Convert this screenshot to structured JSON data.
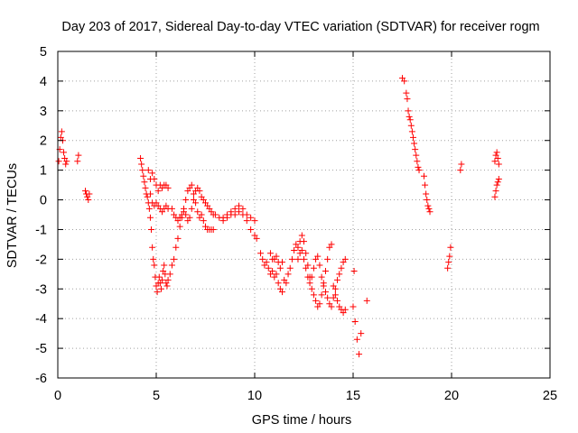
{
  "chart_data": {
    "type": "scatter",
    "title": "Day 203 of 2017, Sidereal Day-to-day VTEC variation (SDTVAR) for receiver rogm",
    "xlabel": "GPS time / hours",
    "ylabel": "SDTVAR / TECUs",
    "xlim": [
      0,
      25
    ],
    "ylim": [
      -6,
      5
    ],
    "x_ticks": [
      0,
      5,
      10,
      15,
      20,
      25
    ],
    "x_tick_labels": [
      "0",
      "5",
      "10",
      "15",
      "20",
      "25"
    ],
    "y_ticks": [
      -6,
      -5,
      -4,
      -3,
      -2,
      -1,
      0,
      1,
      2,
      3,
      4,
      5
    ],
    "y_tick_labels": [
      "-6",
      "-5",
      "-4",
      "-3",
      "-2",
      "-1",
      "0",
      "1",
      "2",
      "3",
      "4",
      "5"
    ],
    "grid": true,
    "marker": "+",
    "color": "#ff0000",
    "series": [
      {
        "name": "SDTVAR",
        "points": [
          [
            0.05,
            1.3
          ],
          [
            0.1,
            1.7
          ],
          [
            0.15,
            2.1
          ],
          [
            0.2,
            2.3
          ],
          [
            0.25,
            2.0
          ],
          [
            0.3,
            1.6
          ],
          [
            0.35,
            1.4
          ],
          [
            0.4,
            1.2
          ],
          [
            0.45,
            1.3
          ],
          [
            1.0,
            1.3
          ],
          [
            1.05,
            1.5
          ],
          [
            1.4,
            0.3
          ],
          [
            1.45,
            0.2
          ],
          [
            1.5,
            0.1
          ],
          [
            1.55,
            0.0
          ],
          [
            1.6,
            0.2
          ],
          [
            4.2,
            1.4
          ],
          [
            4.25,
            1.2
          ],
          [
            4.3,
            1.0
          ],
          [
            4.35,
            0.8
          ],
          [
            4.4,
            0.6
          ],
          [
            4.45,
            0.4
          ],
          [
            4.5,
            0.2
          ],
          [
            4.55,
            0.1
          ],
          [
            4.6,
            -0.1
          ],
          [
            4.65,
            -0.3
          ],
          [
            4.7,
            -0.6
          ],
          [
            4.75,
            -1.0
          ],
          [
            4.8,
            -1.6
          ],
          [
            4.85,
            -2.0
          ],
          [
            4.9,
            -2.2
          ],
          [
            4.95,
            -2.6
          ],
          [
            5.0,
            -2.9
          ],
          [
            5.05,
            -3.1
          ],
          [
            5.1,
            -2.8
          ],
          [
            5.15,
            -2.6
          ],
          [
            5.2,
            -2.8
          ],
          [
            5.25,
            -3.0
          ],
          [
            5.3,
            -2.7
          ],
          [
            5.35,
            -2.4
          ],
          [
            5.4,
            -2.2
          ],
          [
            5.45,
            -2.5
          ],
          [
            5.5,
            -2.8
          ],
          [
            5.55,
            -2.9
          ],
          [
            5.6,
            -2.7
          ],
          [
            5.7,
            -2.5
          ],
          [
            5.8,
            -2.2
          ],
          [
            5.9,
            -2.0
          ],
          [
            6.0,
            -1.6
          ],
          [
            6.1,
            -1.3
          ],
          [
            6.2,
            -0.9
          ],
          [
            6.3,
            -0.6
          ],
          [
            6.4,
            -0.3
          ],
          [
            6.5,
            0.0
          ],
          [
            6.6,
            0.3
          ],
          [
            6.7,
            0.4
          ],
          [
            6.8,
            0.5
          ],
          [
            6.9,
            0.2
          ],
          [
            7.0,
            -0.1
          ],
          [
            7.1,
            -0.4
          ],
          [
            7.2,
            -0.6
          ],
          [
            7.3,
            -0.5
          ],
          [
            7.4,
            -0.7
          ],
          [
            7.5,
            -0.9
          ],
          [
            7.6,
            -1.0
          ],
          [
            7.7,
            -1.0
          ],
          [
            7.8,
            -1.0
          ],
          [
            7.9,
            -1.0
          ],
          [
            4.6,
            1.0
          ],
          [
            4.7,
            0.7
          ],
          [
            4.8,
            0.9
          ],
          [
            4.9,
            0.7
          ],
          [
            5.0,
            0.5
          ],
          [
            5.1,
            0.3
          ],
          [
            5.2,
            0.5
          ],
          [
            5.3,
            0.4
          ],
          [
            5.4,
            0.5
          ],
          [
            5.5,
            0.5
          ],
          [
            5.6,
            0.4
          ],
          [
            4.7,
            0.2
          ],
          [
            4.8,
            -0.1
          ],
          [
            4.9,
            -0.2
          ],
          [
            5.0,
            -0.1
          ],
          [
            5.1,
            -0.2
          ],
          [
            5.2,
            -0.3
          ],
          [
            5.3,
            -0.4
          ],
          [
            5.4,
            -0.3
          ],
          [
            5.5,
            -0.2
          ],
          [
            5.6,
            -0.3
          ],
          [
            5.8,
            -0.3
          ],
          [
            5.9,
            -0.5
          ],
          [
            6.0,
            -0.6
          ],
          [
            6.1,
            -0.7
          ],
          [
            6.2,
            -0.6
          ],
          [
            6.3,
            -0.5
          ],
          [
            6.4,
            -0.4
          ],
          [
            6.5,
            -0.5
          ],
          [
            6.6,
            -0.7
          ],
          [
            6.7,
            -0.6
          ],
          [
            6.8,
            -0.3
          ],
          [
            6.9,
            0.0
          ],
          [
            7.0,
            0.3
          ],
          [
            7.1,
            0.4
          ],
          [
            7.2,
            0.3
          ],
          [
            7.3,
            0.1
          ],
          [
            7.4,
            0.0
          ],
          [
            7.5,
            -0.1
          ],
          [
            7.6,
            -0.2
          ],
          [
            7.7,
            -0.3
          ],
          [
            7.8,
            -0.4
          ],
          [
            7.9,
            -0.5
          ],
          [
            8.0,
            -0.5
          ],
          [
            8.2,
            -0.6
          ],
          [
            8.4,
            -0.6
          ],
          [
            8.6,
            -0.5
          ],
          [
            8.8,
            -0.4
          ],
          [
            9.0,
            -0.3
          ],
          [
            9.2,
            -0.2
          ],
          [
            9.4,
            -0.3
          ],
          [
            9.6,
            -0.5
          ],
          [
            9.8,
            -0.6
          ],
          [
            10.0,
            -0.7
          ],
          [
            8.4,
            -0.7
          ],
          [
            8.6,
            -0.6
          ],
          [
            8.8,
            -0.5
          ],
          [
            9.0,
            -0.5
          ],
          [
            9.2,
            -0.4
          ],
          [
            9.4,
            -0.5
          ],
          [
            9.6,
            -0.7
          ],
          [
            9.8,
            -1.0
          ],
          [
            10.0,
            -1.2
          ],
          [
            10.1,
            -1.3
          ],
          [
            10.3,
            -1.8
          ],
          [
            10.4,
            -2.0
          ],
          [
            10.5,
            -2.2
          ],
          [
            10.6,
            -2.1
          ],
          [
            10.7,
            -2.3
          ],
          [
            10.8,
            -2.5
          ],
          [
            10.9,
            -2.4
          ],
          [
            11.0,
            -2.6
          ],
          [
            11.1,
            -2.5
          ],
          [
            11.2,
            -2.8
          ],
          [
            11.3,
            -3.0
          ],
          [
            11.4,
            -3.1
          ],
          [
            11.5,
            -2.7
          ],
          [
            10.8,
            -1.8
          ],
          [
            10.9,
            -2.0
          ],
          [
            11.0,
            -2.0
          ],
          [
            11.1,
            -1.9
          ],
          [
            11.2,
            -2.1
          ],
          [
            11.3,
            -2.3
          ],
          [
            11.4,
            -2.1
          ],
          [
            11.6,
            -2.8
          ],
          [
            11.7,
            -2.5
          ],
          [
            11.8,
            -2.3
          ],
          [
            11.9,
            -2.0
          ],
          [
            12.0,
            -1.7
          ],
          [
            12.1,
            -1.5
          ],
          [
            12.2,
            -1.6
          ],
          [
            12.3,
            -1.4
          ],
          [
            12.4,
            -1.2
          ],
          [
            12.5,
            -1.4
          ],
          [
            12.6,
            -1.8
          ],
          [
            12.7,
            -2.2
          ],
          [
            12.8,
            -2.6
          ],
          [
            12.9,
            -3.0
          ],
          [
            13.0,
            -3.2
          ],
          [
            13.1,
            -3.4
          ],
          [
            13.2,
            -3.6
          ],
          [
            13.3,
            -3.5
          ],
          [
            13.4,
            -3.2
          ],
          [
            13.5,
            -2.8
          ],
          [
            13.6,
            -2.4
          ],
          [
            13.7,
            -2.0
          ],
          [
            13.8,
            -1.6
          ],
          [
            13.9,
            -1.5
          ],
          [
            12.2,
            -2.0
          ],
          [
            12.3,
            -1.8
          ],
          [
            12.4,
            -1.7
          ],
          [
            12.5,
            -2.0
          ],
          [
            12.6,
            -2.3
          ],
          [
            12.7,
            -2.6
          ],
          [
            12.8,
            -2.8
          ],
          [
            12.9,
            -2.6
          ],
          [
            13.0,
            -2.3
          ],
          [
            13.1,
            -2.0
          ],
          [
            13.2,
            -1.9
          ],
          [
            13.3,
            -2.2
          ],
          [
            13.4,
            -2.6
          ],
          [
            13.5,
            -2.9
          ],
          [
            13.6,
            -3.1
          ],
          [
            13.7,
            -3.3
          ],
          [
            13.8,
            -3.5
          ],
          [
            13.9,
            -3.6
          ],
          [
            14.0,
            -3.3
          ],
          [
            14.1,
            -3.0
          ],
          [
            14.2,
            -2.7
          ],
          [
            14.3,
            -2.5
          ],
          [
            14.4,
            -2.3
          ],
          [
            14.5,
            -2.1
          ],
          [
            14.6,
            -2.0
          ],
          [
            14.0,
            -2.9
          ],
          [
            14.1,
            -3.2
          ],
          [
            14.2,
            -3.4
          ],
          [
            14.3,
            -3.6
          ],
          [
            14.4,
            -3.7
          ],
          [
            14.5,
            -3.8
          ],
          [
            14.6,
            -3.7
          ],
          [
            15.0,
            -3.6
          ],
          [
            15.1,
            -4.1
          ],
          [
            15.2,
            -4.7
          ],
          [
            15.3,
            -5.2
          ],
          [
            15.4,
            -4.5
          ],
          [
            15.05,
            -2.4
          ],
          [
            15.7,
            -3.4
          ],
          [
            17.5,
            4.1
          ],
          [
            17.6,
            4.0
          ],
          [
            17.7,
            3.6
          ],
          [
            17.75,
            3.4
          ],
          [
            17.8,
            3.0
          ],
          [
            17.85,
            2.8
          ],
          [
            17.9,
            2.7
          ],
          [
            17.95,
            2.5
          ],
          [
            18.0,
            2.3
          ],
          [
            18.05,
            2.1
          ],
          [
            18.1,
            1.9
          ],
          [
            18.15,
            1.7
          ],
          [
            18.2,
            1.5
          ],
          [
            18.25,
            1.3
          ],
          [
            18.3,
            1.1
          ],
          [
            18.35,
            1.0
          ],
          [
            18.6,
            0.8
          ],
          [
            18.65,
            0.5
          ],
          [
            18.7,
            0.2
          ],
          [
            18.75,
            0.0
          ],
          [
            18.8,
            -0.2
          ],
          [
            18.85,
            -0.3
          ],
          [
            18.9,
            -0.4
          ],
          [
            19.8,
            -2.3
          ],
          [
            19.85,
            -2.1
          ],
          [
            19.9,
            -1.9
          ],
          [
            19.95,
            -1.6
          ],
          [
            20.45,
            1.0
          ],
          [
            20.5,
            1.2
          ],
          [
            22.2,
            0.1
          ],
          [
            22.25,
            0.3
          ],
          [
            22.3,
            0.5
          ],
          [
            22.35,
            0.6
          ],
          [
            22.4,
            0.7
          ],
          [
            22.2,
            1.3
          ],
          [
            22.25,
            1.5
          ],
          [
            22.3,
            1.6
          ],
          [
            22.35,
            1.4
          ],
          [
            22.4,
            1.2
          ]
        ]
      }
    ]
  }
}
